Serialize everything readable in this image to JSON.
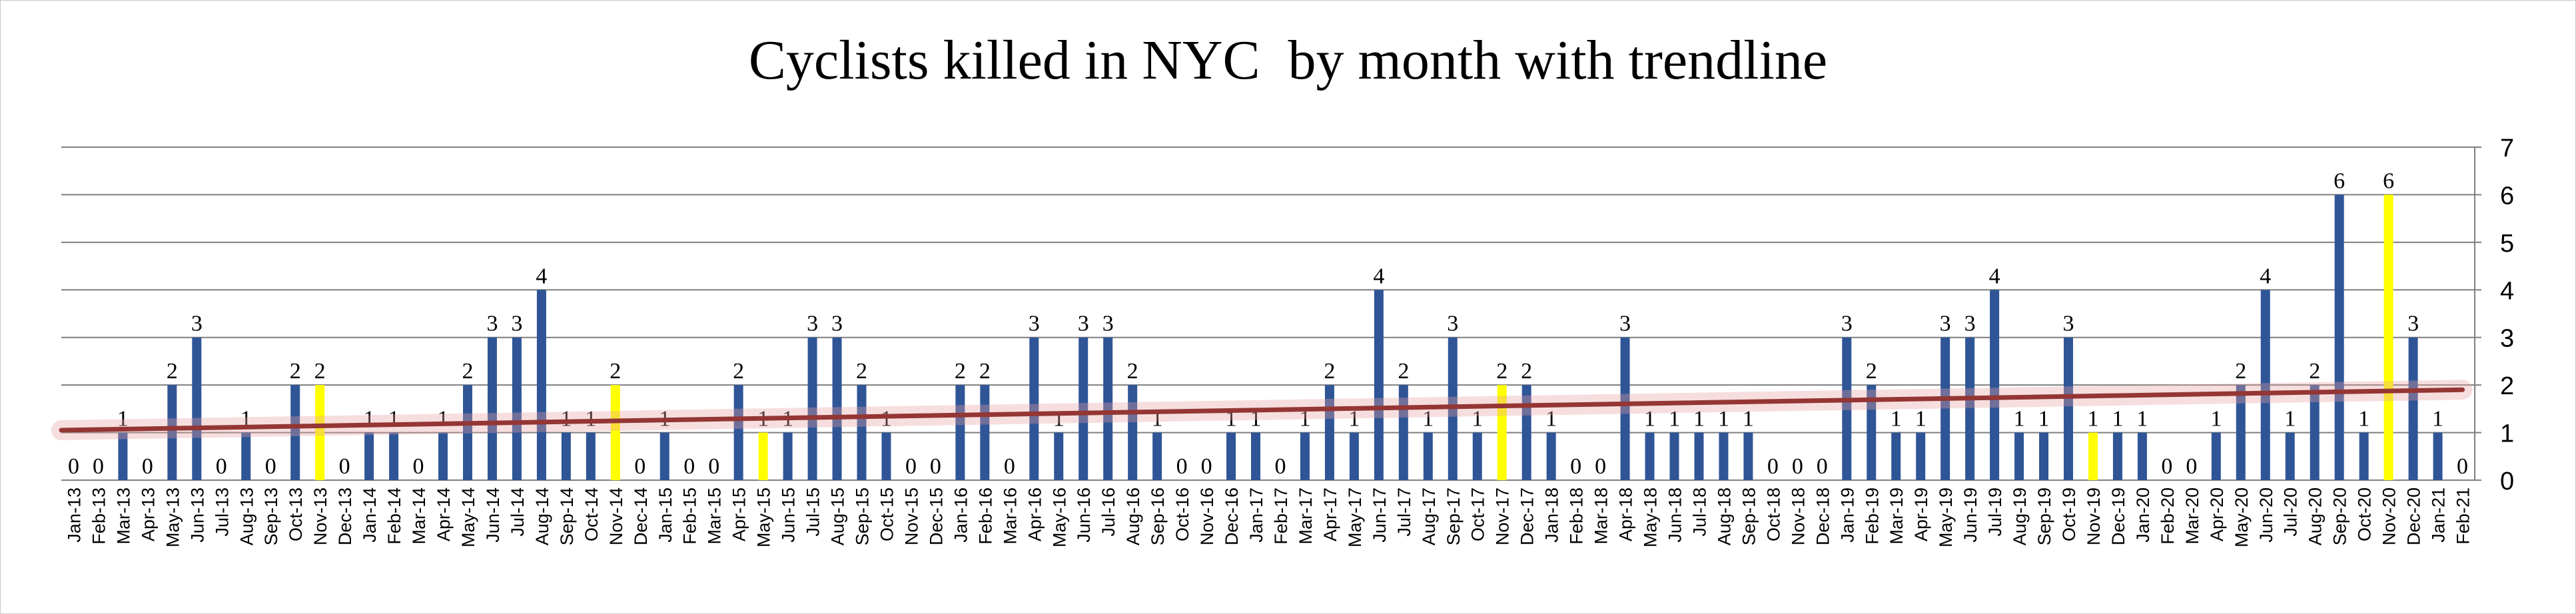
{
  "chart_data": {
    "type": "bar",
    "title": "Cyclists killed in NYC  by month with trendline",
    "xlabel": "",
    "ylabel": "",
    "ylim": [
      0,
      7
    ],
    "yticks": [
      0,
      1,
      2,
      3,
      4,
      5,
      6,
      7
    ],
    "y_axis_side": "right",
    "grid": true,
    "legend": "none",
    "colors": {
      "bar": "#2F5597",
      "highlight": "#FFFF00",
      "trendline": "#943634",
      "gridline": "#7F7F7F"
    },
    "categories": [
      "Jan-13",
      "Feb-13",
      "Mar-13",
      "Apr-13",
      "May-13",
      "Jun-13",
      "Jul-13",
      "Aug-13",
      "Sep-13",
      "Oct-13",
      "Nov-13",
      "Dec-13",
      "Jan-14",
      "Feb-14",
      "Mar-14",
      "Apr-14",
      "May-14",
      "Jun-14",
      "Jul-14",
      "Aug-14",
      "Sep-14",
      "Oct-14",
      "Nov-14",
      "Dec-14",
      "Jan-15",
      "Feb-15",
      "Mar-15",
      "Apr-15",
      "May-15",
      "Jun-15",
      "Jul-15",
      "Aug-15",
      "Sep-15",
      "Oct-15",
      "Nov-15",
      "Dec-15",
      "Jan-16",
      "Feb-16",
      "Mar-16",
      "Apr-16",
      "May-16",
      "Jun-16",
      "Jul-16",
      "Aug-16",
      "Sep-16",
      "Oct-16",
      "Nov-16",
      "Dec-16",
      "Jan-17",
      "Feb-17",
      "Mar-17",
      "Apr-17",
      "May-17",
      "Jun-17",
      "Jul-17",
      "Aug-17",
      "Sep-17",
      "Oct-17",
      "Nov-17",
      "Dec-17",
      "Jan-18",
      "Feb-18",
      "Mar-18",
      "Apr-18",
      "May-18",
      "Jun-18",
      "Jul-18",
      "Aug-18",
      "Sep-18",
      "Oct-18",
      "Nov-18",
      "Dec-18",
      "Jan-19",
      "Feb-19",
      "Mar-19",
      "Apr-19",
      "May-19",
      "Jun-19",
      "Jul-19",
      "Aug-19",
      "Sep-19",
      "Oct-19",
      "Nov-19",
      "Dec-19",
      "Jan-20",
      "Feb-20",
      "Mar-20",
      "Apr-20",
      "May-20",
      "Jun-20",
      "Jul-20",
      "Aug-20",
      "Sep-20",
      "Oct-20",
      "Nov-20",
      "Dec-20",
      "Jan-21",
      "Feb-21"
    ],
    "values": [
      0,
      0,
      1,
      0,
      2,
      3,
      0,
      1,
      0,
      2,
      2,
      0,
      1,
      1,
      0,
      1,
      2,
      3,
      3,
      4,
      1,
      1,
      2,
      0,
      1,
      0,
      0,
      2,
      1,
      1,
      3,
      3,
      2,
      1,
      0,
      0,
      2,
      2,
      0,
      3,
      1,
      3,
      3,
      2,
      1,
      0,
      0,
      1,
      1,
      0,
      1,
      2,
      1,
      4,
      2,
      1,
      3,
      1,
      2,
      2,
      1,
      0,
      0,
      3,
      1,
      1,
      1,
      1,
      1,
      0,
      0,
      0,
      3,
      2,
      1,
      1,
      3,
      3,
      4,
      1,
      1,
      3,
      1,
      1,
      1,
      0,
      0,
      1,
      2,
      4,
      1,
      2,
      6,
      1,
      6,
      3,
      1,
      0
    ],
    "highlighted_categories": [
      "Nov-13",
      "Nov-14",
      "May-15",
      "Nov-17",
      "Nov-19",
      "Nov-20"
    ],
    "trendline": {
      "type": "linear",
      "start_value": 1.05,
      "end_value": 1.9
    }
  }
}
